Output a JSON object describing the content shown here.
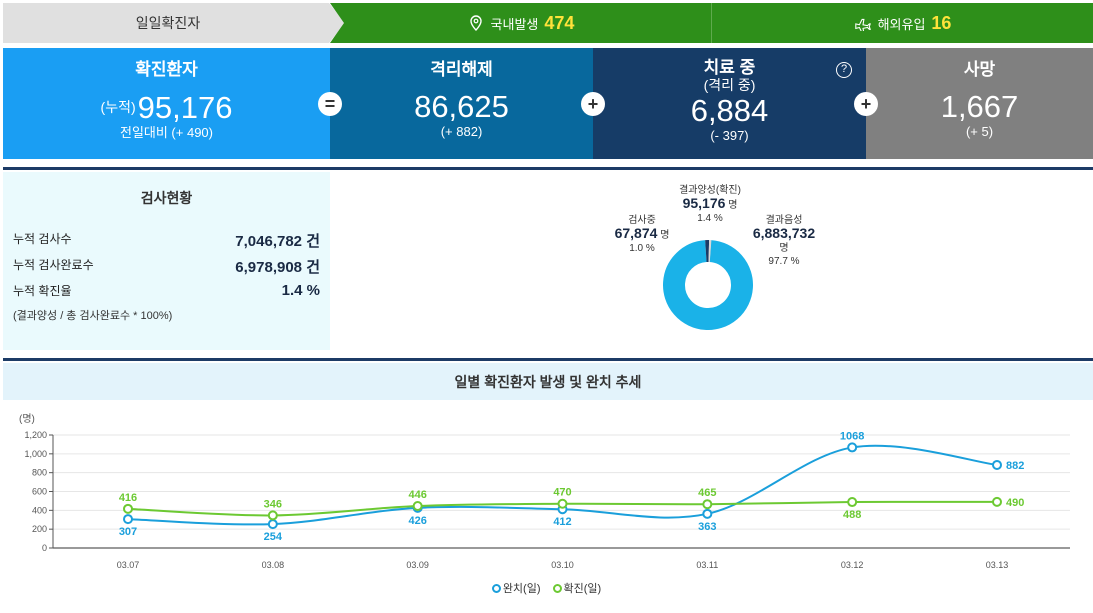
{
  "topbar": {
    "daily_label": "일일확진자",
    "domestic_label": "국내발생",
    "domestic_value": "474",
    "overseas_label": "해외유입",
    "overseas_value": "16"
  },
  "stats": {
    "confirmed": {
      "title": "확진환자",
      "prefix": "(누적)",
      "value": "95,176",
      "diff": "전일대비 (+ 490)"
    },
    "released": {
      "title": "격리해제",
      "value": "86,625",
      "diff": "(+ 882)"
    },
    "treating": {
      "title": "치료 중",
      "subtitle": "(격리 중)",
      "value": "6,884",
      "diff": "(- 397)"
    },
    "deaths": {
      "title": "사망",
      "value": "1,667",
      "diff": "(+ 5)"
    },
    "op_equals": "=",
    "op_plus": "+",
    "help": "?"
  },
  "test_status": {
    "title": "검사현황",
    "rows": [
      {
        "label": "누적 검사수",
        "value": "7,046,782 건"
      },
      {
        "label": "누적 검사완료수",
        "value": "6,978,908 건"
      },
      {
        "label": "누적 확진율",
        "value": "1.4 %"
      }
    ],
    "note": "(결과양성 / 총 검사완료수 * 100%)"
  },
  "donut": {
    "positive": {
      "label": "결과양성(확진)",
      "value": "95,176",
      "unit": "명",
      "pct": "1.4 %"
    },
    "testing": {
      "label": "검사중",
      "value": "67,874",
      "unit": "명",
      "pct": "1.0 %"
    },
    "negative": {
      "label": "결과음성",
      "value": "6,883,732",
      "unit": "명",
      "pct": "97.7 %"
    },
    "fractions": {
      "negative": 0.977,
      "testing": 0.01,
      "positive": 0.014
    },
    "colors": {
      "negative": "#1ab2e8",
      "testing": "#d9d9d9",
      "positive": "#1c3b66"
    }
  },
  "chart_title": "일별 확진환자 발생 및 완치 추세",
  "chart_data": {
    "type": "line",
    "categories": [
      "03.07",
      "03.08",
      "03.09",
      "03.10",
      "03.11",
      "03.12",
      "03.13"
    ],
    "ylabel": "(명)",
    "ylim": [
      0,
      1200
    ],
    "yticks": [
      "0",
      "200",
      "400",
      "600",
      "800",
      "1,000",
      "1,200"
    ],
    "grid": true,
    "legend_position": "bottom",
    "series": [
      {
        "name": "완치(일)",
        "color": "#1a9fdb",
        "values": [
          307,
          254,
          426,
          412,
          363,
          1068,
          882
        ]
      },
      {
        "name": "확진(일)",
        "color": "#6cc932",
        "values": [
          416,
          346,
          446,
          470,
          465,
          488,
          490
        ]
      }
    ]
  }
}
